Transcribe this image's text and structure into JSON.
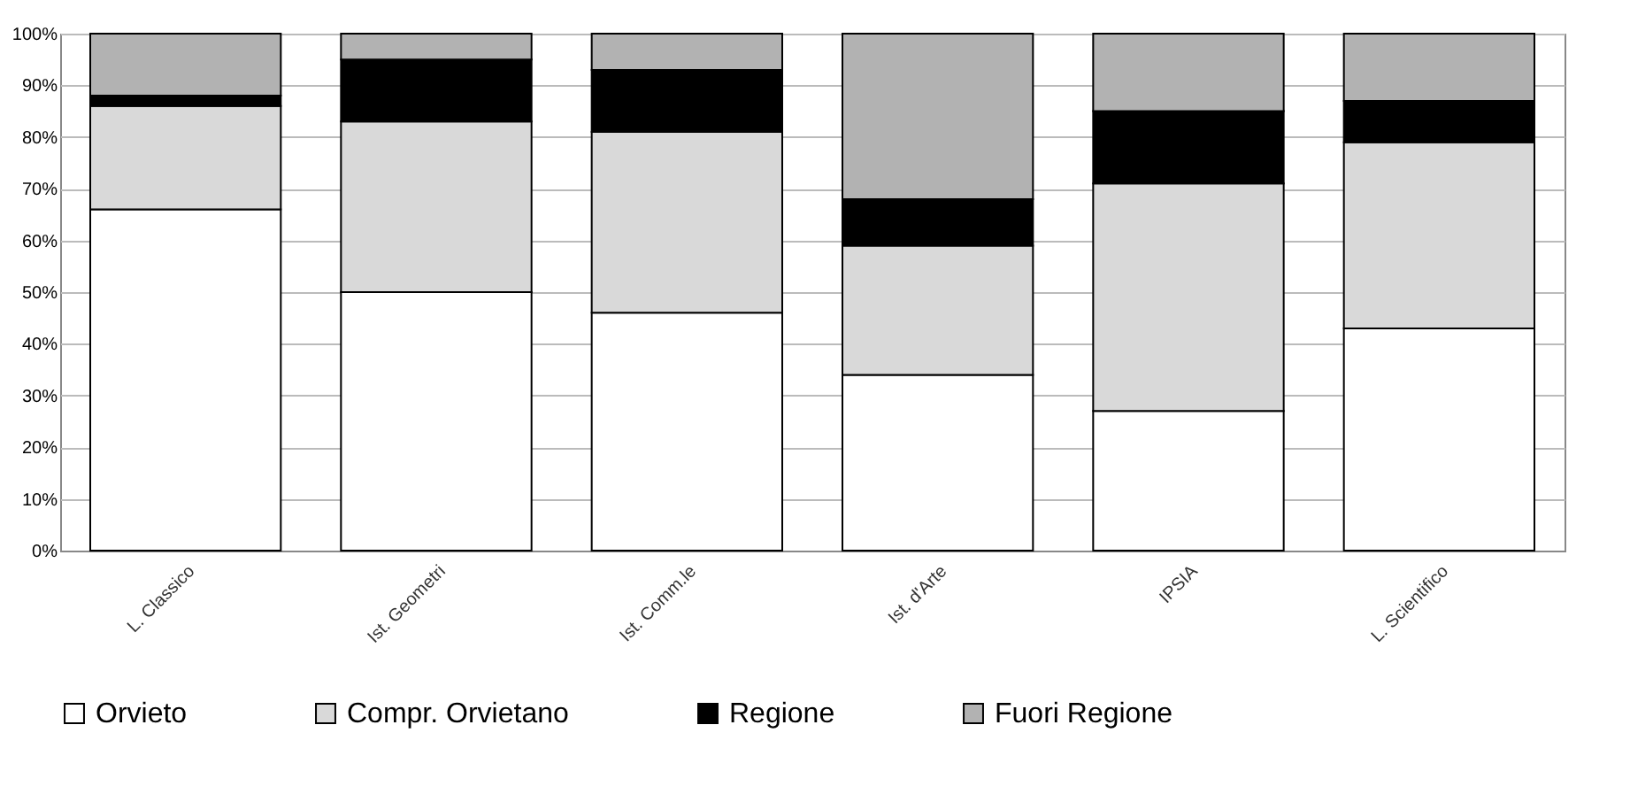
{
  "chart_data": {
    "type": "bar",
    "stacked": true,
    "categories": [
      "L. Classico",
      "Ist. Geometri",
      "Ist. Comm.le",
      "Ist. d'Arte",
      "IPSIA",
      "L. Scientifico"
    ],
    "series": [
      {
        "name": "Orvieto",
        "color": "#ffffff",
        "values": [
          66,
          50,
          46,
          34,
          27,
          43
        ]
      },
      {
        "name": "Compr. Orvietano",
        "color": "#d9d9d9",
        "values": [
          20,
          33,
          35,
          25,
          44,
          36
        ]
      },
      {
        "name": "Regione",
        "color": "#000000",
        "values": [
          2,
          12,
          12,
          9,
          14,
          8
        ]
      },
      {
        "name": "Fuori Regione",
        "color": "#b2b2b2",
        "values": [
          12,
          5,
          7,
          32,
          15,
          13
        ]
      }
    ],
    "ylim": [
      0,
      100
    ],
    "yticks": [
      {
        "value": 0,
        "label": "0%"
      },
      {
        "value": 10,
        "label": "10%"
      },
      {
        "value": 20,
        "label": "20%"
      },
      {
        "value": 30,
        "label": "30%"
      },
      {
        "value": 40,
        "label": "40%"
      },
      {
        "value": 50,
        "label": "50%"
      },
      {
        "value": 60,
        "label": "60%"
      },
      {
        "value": 70,
        "label": "70%"
      },
      {
        "value": 80,
        "label": "80%"
      },
      {
        "value": 90,
        "label": "90%"
      },
      {
        "value": 100,
        "label": "100%"
      }
    ],
    "grid": "y",
    "legend": "bottom"
  }
}
